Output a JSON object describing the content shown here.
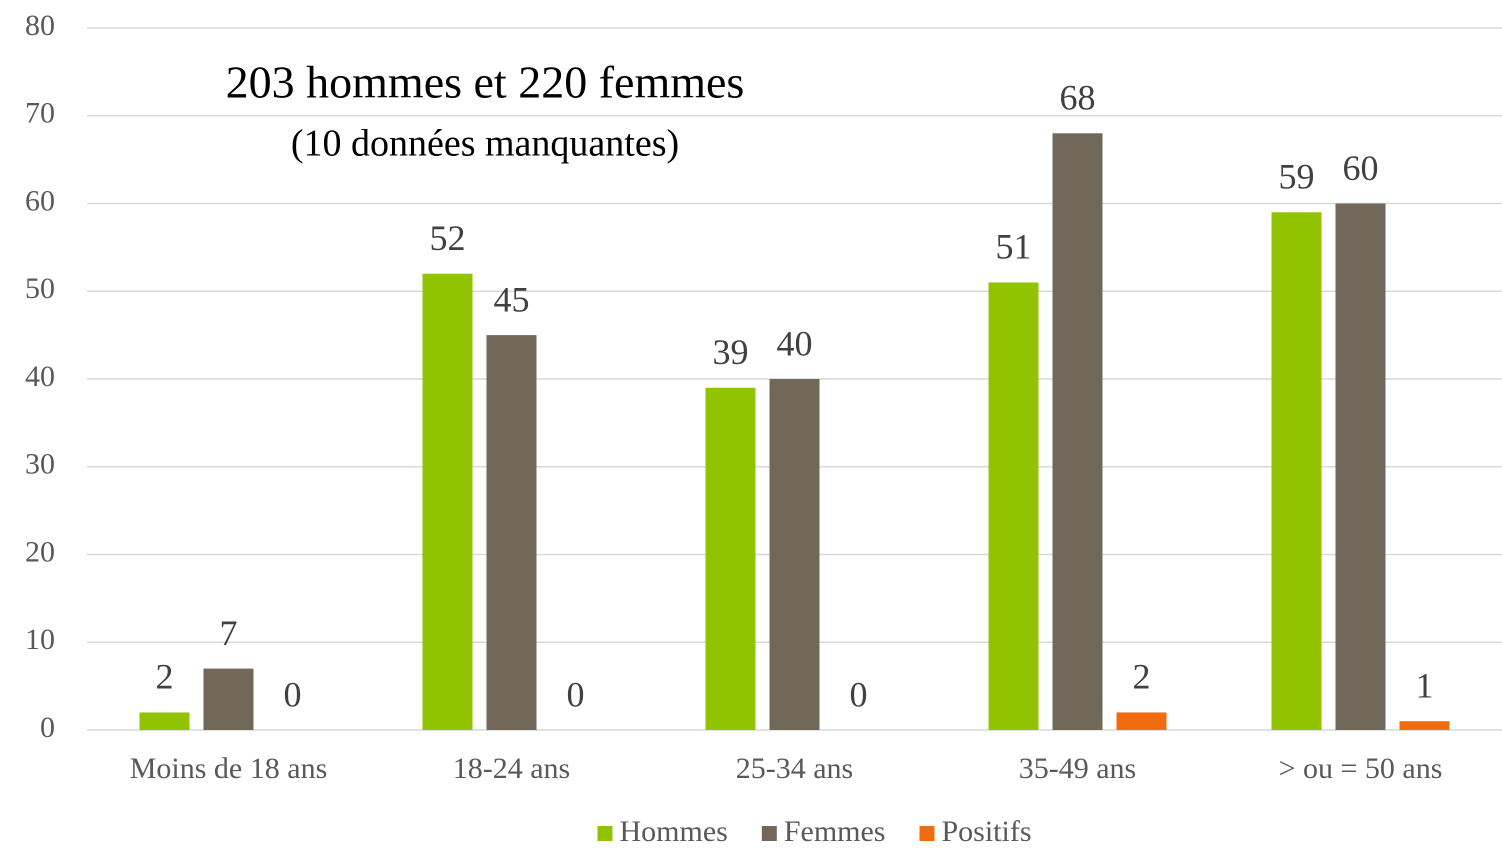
{
  "chart_data": {
    "type": "bar",
    "title": "203 hommes et 220 femmes",
    "subtitle": "(10 données manquantes)",
    "categories": [
      "Moins de 18 ans",
      "18-24 ans",
      "25-34 ans",
      "35-49 ans",
      "> ou = 50 ans"
    ],
    "series": [
      {
        "name": "Hommes",
        "color": "#92c300",
        "values": [
          2,
          52,
          39,
          51,
          59
        ]
      },
      {
        "name": "Femmes",
        "color": "#72685a",
        "values": [
          7,
          45,
          40,
          68,
          60
        ]
      },
      {
        "name": "Positifs",
        "color": "#f26b0f",
        "values": [
          0,
          0,
          0,
          2,
          1
        ]
      }
    ],
    "ylim": [
      0,
      80
    ],
    "yticks": [
      0,
      10,
      20,
      30,
      40,
      50,
      60,
      70,
      80
    ],
    "grid": true,
    "legend": "bottom"
  }
}
